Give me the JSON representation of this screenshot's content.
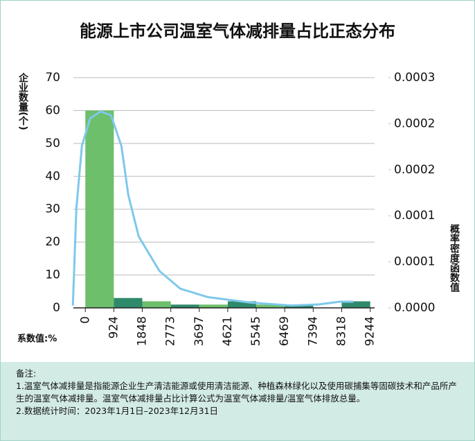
{
  "chart_data": {
    "type": "histogram",
    "title": "能源上市公司温室气体减排量占比正态分布",
    "y_label": "企业数量(个)",
    "y2_label": "概率密度函数值",
    "x_label": "系数值:%",
    "bins": [
      0,
      924,
      1848,
      2773,
      3697,
      4621,
      5545,
      6469,
      7394,
      8318,
      9244
    ],
    "values": [
      60,
      3,
      2,
      1,
      1,
      2,
      1,
      1,
      0,
      2
    ],
    "colors": [
      "#6dbf6b",
      "#2f8a6c",
      "#6dbf6b",
      "#2f8a6c",
      "#6dbf6b",
      "#2f8a6c",
      "#6dbf6b",
      "#2f8a6c",
      "#6dbf6b",
      "#2f8a6c"
    ],
    "xlim": [
      -500,
      9700
    ],
    "ylim": [
      0,
      70
    ],
    "yticks": [
      0,
      10,
      20,
      30,
      40,
      50,
      60,
      70
    ],
    "y2lim": [
      0,
      0.0003
    ],
    "y2ticks": [
      {
        "value": 0,
        "label": "0.0000"
      },
      {
        "value": 6e-05,
        "label": "0.0001"
      },
      {
        "value": 0.00012,
        "label": "0.0001"
      },
      {
        "value": 0.00018,
        "label": "0.0002"
      },
      {
        "value": 0.00024,
        "label": "0.0002"
      },
      {
        "value": 0.0003,
        "label": "0.0003"
      }
    ],
    "grid": true,
    "curve": {
      "color": "#7ec8ea",
      "axis": "y2",
      "x": [
        -405,
        -292,
        -112,
        157,
        495,
        832,
        1170,
        1394,
        1732,
        2406,
        3080,
        3979,
        5328,
        6677,
        7576,
        8250,
        8700
      ],
      "values": [
        3e-06,
        0.000129,
        0.000211,
        0.000247,
        0.000256,
        0.000251,
        0.000211,
        0.000147,
        9.3e-05,
        4.8e-05,
        2.5e-05,
        1.4e-05,
        7e-06,
        3e-06,
        4.5e-06,
        8e-06,
        8e-06
      ]
    }
  },
  "notes": {
    "title": "备注:",
    "items": [
      "1.温室气体减排量是指能源企业生产清洁能源或使用清洁能源、种植森林绿化以及使用碳捕集等固碳技术和产品所产生的温室气体减排量。温室气体减排量占比计算公式为温室气体减排量/温室气体排放总量。",
      "2.数据统计时间：2023年1月1日–2023年12月31日"
    ]
  }
}
